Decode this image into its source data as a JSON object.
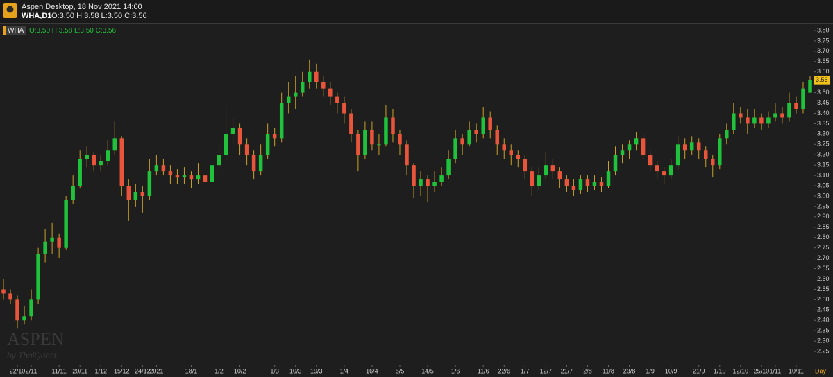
{
  "header": {
    "app_title": "Aspen Desktop, 18 Nov 2021 14:00",
    "symbol": "WHA,D1",
    "ohlc_text": "O:3.50 H:3.58 L:3.50 C:3.56"
  },
  "legend": {
    "symbol": "WHA",
    "ohlc_text": "O:3.50 H:3.58 L:3.50 C:3.56"
  },
  "watermark": {
    "brand": "ASPEN",
    "by": "by ThaiQuest"
  },
  "chart_data": {
    "type": "candlestick",
    "timeframe_label": "Day",
    "up_color": "#1fc23a",
    "down_color": "#e8553b",
    "wick_color": "#c9a227",
    "grid": false,
    "ylim": [
      2.19,
      3.83
    ],
    "yticks": [
      {
        "value": 2.25,
        "label": "2.25"
      },
      {
        "value": 2.3,
        "label": "2.30"
      },
      {
        "value": 2.35,
        "label": "2.35"
      },
      {
        "value": 2.4,
        "label": "2.40"
      },
      {
        "value": 2.45,
        "label": "2.45"
      },
      {
        "value": 2.5,
        "label": "2.50"
      },
      {
        "value": 2.55,
        "label": "2.55"
      },
      {
        "value": 2.6,
        "label": "2.60"
      },
      {
        "value": 2.65,
        "label": "2.65"
      },
      {
        "value": 2.7,
        "label": "2.70"
      },
      {
        "value": 2.75,
        "label": "2.75"
      },
      {
        "value": 2.8,
        "label": "2.80"
      },
      {
        "value": 2.85,
        "label": "2.85"
      },
      {
        "value": 2.9,
        "label": "2.90"
      },
      {
        "value": 2.95,
        "label": "2.95"
      },
      {
        "value": 3.0,
        "label": "3.00"
      },
      {
        "value": 3.05,
        "label": "3.05"
      },
      {
        "value": 3.1,
        "label": "3.10"
      },
      {
        "value": 3.15,
        "label": "3.15"
      },
      {
        "value": 3.2,
        "label": "3.20"
      },
      {
        "value": 3.25,
        "label": "3.25"
      },
      {
        "value": 3.3,
        "label": "3.30"
      },
      {
        "value": 3.35,
        "label": "3.35"
      },
      {
        "value": 3.4,
        "label": "3.40"
      },
      {
        "value": 3.45,
        "label": "3.45"
      },
      {
        "value": 3.5,
        "label": "3.50"
      },
      {
        "value": 3.55,
        "label": "3.55"
      },
      {
        "value": 3.6,
        "label": "3.60"
      },
      {
        "value": 3.65,
        "label": "3.65"
      },
      {
        "value": 3.7,
        "label": "3.70"
      },
      {
        "value": 3.75,
        "label": "3.75"
      },
      {
        "value": 3.8,
        "label": "3.80"
      }
    ],
    "categories": [
      null,
      null,
      "22/10",
      null,
      "2/11",
      null,
      null,
      null,
      "11/11",
      null,
      null,
      "20/11",
      null,
      null,
      "1/12",
      null,
      null,
      "15/12",
      null,
      null,
      "24/12",
      null,
      "2021",
      null,
      null,
      null,
      null,
      "18/1",
      null,
      null,
      null,
      "1/2",
      null,
      null,
      "10/2",
      null,
      null,
      null,
      null,
      "1/3",
      null,
      null,
      "10/3",
      null,
      null,
      "19/3",
      null,
      null,
      null,
      "1/4",
      null,
      null,
      null,
      "16/4",
      null,
      null,
      null,
      "5/5",
      null,
      null,
      null,
      "14/5",
      null,
      null,
      null,
      "1/6",
      null,
      null,
      null,
      "11/6",
      null,
      null,
      "22/6",
      null,
      null,
      "1/7",
      null,
      null,
      "12/7",
      null,
      null,
      "21/7",
      null,
      null,
      "2/8",
      null,
      null,
      "11/8",
      null,
      null,
      "23/8",
      null,
      null,
      "1/9",
      null,
      null,
      "10/9",
      null,
      null,
      null,
      "21/9",
      null,
      null,
      "1/10",
      null,
      null,
      "12/10",
      null,
      null,
      "25/10",
      null,
      "1/11",
      null,
      null,
      "10/11",
      null,
      null
    ],
    "open": [
      2.55,
      2.53,
      2.5,
      2.4,
      2.42,
      2.5,
      2.72,
      2.78,
      2.8,
      2.75,
      2.98,
      3.05,
      3.18,
      3.2,
      3.15,
      3.17,
      3.22,
      3.28,
      3.05,
      2.98,
      3.02,
      3.0,
      3.12,
      3.15,
      3.12,
      3.1,
      3.09,
      3.1,
      3.08,
      3.1,
      3.07,
      3.15,
      3.2,
      3.3,
      3.33,
      3.25,
      3.2,
      3.12,
      3.2,
      3.3,
      3.28,
      3.45,
      3.48,
      3.5,
      3.55,
      3.6,
      3.55,
      3.52,
      3.48,
      3.45,
      3.4,
      3.3,
      3.2,
      3.32,
      3.25,
      3.25,
      3.38,
      3.3,
      3.25,
      3.15,
      3.05,
      3.08,
      3.05,
      3.07,
      3.1,
      3.18,
      3.28,
      3.25,
      3.32,
      3.3,
      3.38,
      3.32,
      3.25,
      3.22,
      3.2,
      3.18,
      3.12,
      3.05,
      3.1,
      3.15,
      3.12,
      3.08,
      3.05,
      3.03,
      3.08,
      3.05,
      3.07,
      3.05,
      3.12,
      3.2,
      3.22,
      3.25,
      3.28,
      3.2,
      3.15,
      3.12,
      3.1,
      3.15,
      3.25,
      3.22,
      3.26,
      3.22,
      3.18,
      3.15,
      3.28,
      3.32,
      3.4,
      3.38,
      3.35,
      3.38,
      3.35,
      3.38,
      3.4,
      3.38,
      3.45,
      3.42,
      3.5
    ],
    "high": [
      2.6,
      2.55,
      2.52,
      2.47,
      2.55,
      2.75,
      2.84,
      2.87,
      2.82,
      3.0,
      3.1,
      3.22,
      3.24,
      3.21,
      3.2,
      3.27,
      3.36,
      3.29,
      3.08,
      3.06,
      3.05,
      3.18,
      3.2,
      3.18,
      3.15,
      3.13,
      3.14,
      3.12,
      3.16,
      3.12,
      3.18,
      3.25,
      3.43,
      3.38,
      3.35,
      3.28,
      3.22,
      3.25,
      3.35,
      3.33,
      3.5,
      3.55,
      3.58,
      3.6,
      3.66,
      3.64,
      3.58,
      3.55,
      3.5,
      3.48,
      3.42,
      3.32,
      3.36,
      3.36,
      3.3,
      3.44,
      3.42,
      3.32,
      3.27,
      3.16,
      3.12,
      3.1,
      3.12,
      3.14,
      3.22,
      3.32,
      3.3,
      3.36,
      3.35,
      3.43,
      3.41,
      3.34,
      3.28,
      3.25,
      3.22,
      3.2,
      3.14,
      3.14,
      3.21,
      3.18,
      3.14,
      3.1,
      3.08,
      3.1,
      3.1,
      3.1,
      3.09,
      3.17,
      3.24,
      3.25,
      3.27,
      3.31,
      3.3,
      3.22,
      3.17,
      3.14,
      3.18,
      3.29,
      3.28,
      3.29,
      3.28,
      3.24,
      3.2,
      3.3,
      3.35,
      3.45,
      3.43,
      3.42,
      3.42,
      3.4,
      3.41,
      3.45,
      3.43,
      3.5,
      3.48,
      3.55,
      3.58
    ],
    "low": [
      2.5,
      2.48,
      2.36,
      2.38,
      2.4,
      2.48,
      2.68,
      2.72,
      2.7,
      2.74,
      2.96,
      3.04,
      3.14,
      3.12,
      3.12,
      3.15,
      3.2,
      3.0,
      2.88,
      2.95,
      2.92,
      2.98,
      3.1,
      3.1,
      3.06,
      3.06,
      3.06,
      3.04,
      3.06,
      3.0,
      3.06,
      3.12,
      3.18,
      3.26,
      3.2,
      3.15,
      3.08,
      3.1,
      3.18,
      3.24,
      3.26,
      3.4,
      3.42,
      3.48,
      3.52,
      3.52,
      3.48,
      3.44,
      3.4,
      3.35,
      3.26,
      3.12,
      3.18,
      3.22,
      3.2,
      3.24,
      3.26,
      3.2,
      3.1,
      2.99,
      3.0,
      2.97,
      3.02,
      3.05,
      3.08,
      3.16,
      3.2,
      3.24,
      3.26,
      3.28,
      3.28,
      3.2,
      3.18,
      3.15,
      3.14,
      3.08,
      3.0,
      3.03,
      3.08,
      3.08,
      3.04,
      3.02,
      3.0,
      3.01,
      3.02,
      3.03,
      3.02,
      3.04,
      3.1,
      3.16,
      3.18,
      3.22,
      3.18,
      3.12,
      3.08,
      3.06,
      3.08,
      3.13,
      3.18,
      3.2,
      3.18,
      3.14,
      3.09,
      3.13,
      3.25,
      3.3,
      3.35,
      3.3,
      3.33,
      3.32,
      3.33,
      3.36,
      3.35,
      3.36,
      3.4,
      3.4,
      3.5
    ],
    "close": [
      2.53,
      2.5,
      2.4,
      2.42,
      2.5,
      2.72,
      2.78,
      2.8,
      2.75,
      2.98,
      3.05,
      3.18,
      3.2,
      3.15,
      3.17,
      3.22,
      3.28,
      3.05,
      2.98,
      3.02,
      3.0,
      3.12,
      3.15,
      3.12,
      3.1,
      3.09,
      3.1,
      3.08,
      3.1,
      3.07,
      3.15,
      3.2,
      3.3,
      3.33,
      3.25,
      3.2,
      3.12,
      3.2,
      3.3,
      3.28,
      3.45,
      3.48,
      3.5,
      3.55,
      3.6,
      3.55,
      3.52,
      3.48,
      3.45,
      3.4,
      3.3,
      3.2,
      3.32,
      3.25,
      3.25,
      3.38,
      3.3,
      3.25,
      3.15,
      3.05,
      3.08,
      3.05,
      3.07,
      3.1,
      3.18,
      3.28,
      3.25,
      3.32,
      3.3,
      3.38,
      3.32,
      3.25,
      3.22,
      3.2,
      3.18,
      3.12,
      3.05,
      3.1,
      3.15,
      3.12,
      3.08,
      3.05,
      3.03,
      3.08,
      3.05,
      3.07,
      3.05,
      3.12,
      3.2,
      3.22,
      3.25,
      3.28,
      3.2,
      3.15,
      3.12,
      3.1,
      3.15,
      3.25,
      3.22,
      3.26,
      3.22,
      3.18,
      3.15,
      3.28,
      3.32,
      3.4,
      3.38,
      3.35,
      3.38,
      3.35,
      3.38,
      3.4,
      3.38,
      3.45,
      3.42,
      3.52,
      3.56
    ]
  }
}
